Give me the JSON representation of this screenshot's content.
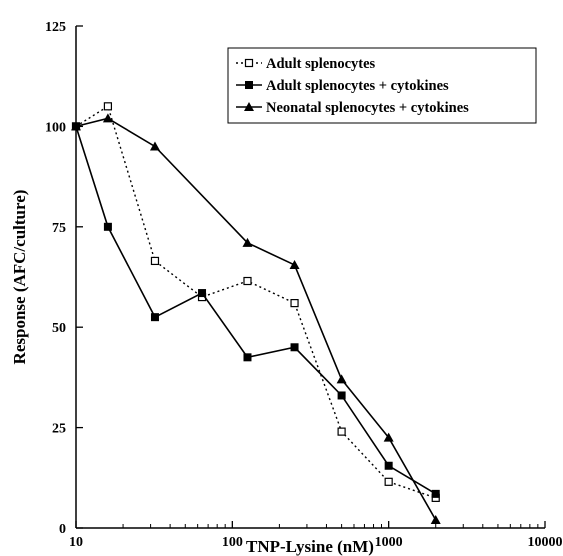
{
  "chart_data": {
    "type": "line",
    "title": "",
    "xlabel": "TNP-Lysine (nM)",
    "ylabel": "Response (AFC/culture)",
    "x_scale": "log",
    "xlim": [
      10,
      10000
    ],
    "ylim": [
      0,
      125
    ],
    "x_ticks": [
      10,
      100,
      1000,
      10000
    ],
    "x_tick_labels": [
      "10",
      "100",
      "1000",
      "10000"
    ],
    "y_ticks": [
      0,
      25,
      50,
      75,
      100,
      125
    ],
    "y_tick_labels": [
      "0",
      "25",
      "50",
      "75",
      "100",
      "125"
    ],
    "grid": false,
    "legend_position": "top-right",
    "series": [
      {
        "name": "Adult splenocytes",
        "marker": "open-square",
        "line": "dotted",
        "x": [
          10,
          16,
          32,
          64,
          125,
          250,
          500,
          1000,
          2000
        ],
        "y": [
          100,
          105,
          66.5,
          57.5,
          61.5,
          56,
          24,
          11.5,
          7.5
        ]
      },
      {
        "name": "Adult splenocytes + cytokines",
        "marker": "filled-square",
        "line": "solid",
        "x": [
          10,
          16,
          32,
          64,
          125,
          250,
          500,
          1000,
          2000
        ],
        "y": [
          100,
          75,
          52.5,
          58.5,
          42.5,
          45,
          33,
          15.5,
          8.5
        ]
      },
      {
        "name": "Neonatal splenocytes + cytokines",
        "marker": "filled-triangle",
        "line": "solid",
        "x": [
          10,
          16,
          32,
          125,
          250,
          500,
          1000,
          2000
        ],
        "y": [
          100,
          102,
          95,
          71,
          65.5,
          37,
          22.5,
          2
        ]
      }
    ]
  }
}
